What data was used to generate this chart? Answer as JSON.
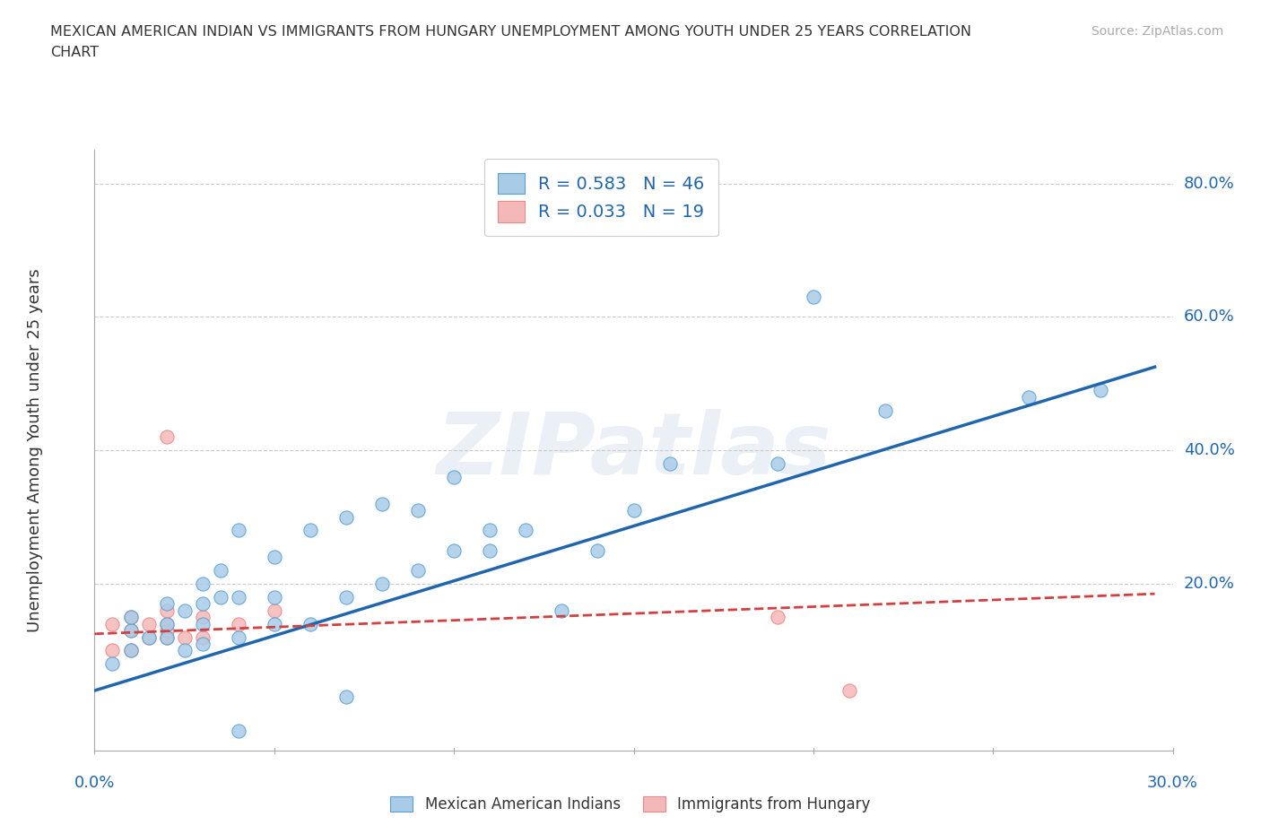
{
  "title_line1": "MEXICAN AMERICAN INDIAN VS IMMIGRANTS FROM HUNGARY UNEMPLOYMENT AMONG YOUTH UNDER 25 YEARS CORRELATION",
  "title_line2": "CHART",
  "source": "Source: ZipAtlas.com",
  "ylabel": "Unemployment Among Youth under 25 years",
  "xlim": [
    0.0,
    0.3
  ],
  "ylim": [
    -0.05,
    0.85
  ],
  "ytick_labels": [
    "20.0%",
    "40.0%",
    "60.0%",
    "80.0%"
  ],
  "ytick_values": [
    0.2,
    0.4,
    0.6,
    0.8
  ],
  "legend_blue_label": "R = 0.583   N = 46",
  "legend_pink_label": "R = 0.033   N = 19",
  "blue_color": "#a8cce8",
  "pink_color": "#f5b8b8",
  "blue_edge_color": "#5a9fd4",
  "pink_edge_color": "#e88888",
  "blue_line_color": "#2166ac",
  "pink_line_color": "#d44040",
  "grid_color": "#cccccc",
  "watermark": "ZIPatlas",
  "blue_scatter_x": [
    0.005,
    0.01,
    0.01,
    0.01,
    0.015,
    0.02,
    0.02,
    0.02,
    0.025,
    0.025,
    0.03,
    0.03,
    0.03,
    0.03,
    0.035,
    0.035,
    0.04,
    0.04,
    0.04,
    0.04,
    0.05,
    0.05,
    0.05,
    0.06,
    0.06,
    0.07,
    0.07,
    0.07,
    0.08,
    0.08,
    0.09,
    0.09,
    0.1,
    0.1,
    0.11,
    0.11,
    0.12,
    0.13,
    0.14,
    0.15,
    0.16,
    0.19,
    0.2,
    0.22,
    0.26,
    0.28
  ],
  "blue_scatter_y": [
    0.08,
    0.1,
    0.13,
    0.15,
    0.12,
    0.12,
    0.14,
    0.17,
    0.1,
    0.16,
    0.11,
    0.14,
    0.17,
    0.2,
    0.18,
    0.22,
    -0.02,
    0.12,
    0.18,
    0.28,
    0.14,
    0.18,
    0.24,
    0.14,
    0.28,
    0.03,
    0.18,
    0.3,
    0.2,
    0.32,
    0.22,
    0.31,
    0.25,
    0.36,
    0.25,
    0.28,
    0.28,
    0.16,
    0.25,
    0.31,
    0.38,
    0.38,
    0.63,
    0.46,
    0.48,
    0.49
  ],
  "pink_scatter_x": [
    0.005,
    0.005,
    0.01,
    0.01,
    0.01,
    0.015,
    0.015,
    0.02,
    0.02,
    0.02,
    0.02,
    0.02,
    0.025,
    0.03,
    0.03,
    0.04,
    0.05,
    0.19,
    0.21
  ],
  "pink_scatter_y": [
    0.1,
    0.14,
    0.1,
    0.13,
    0.15,
    0.12,
    0.14,
    0.12,
    0.13,
    0.14,
    0.16,
    0.42,
    0.12,
    0.12,
    0.15,
    0.14,
    0.16,
    0.15,
    0.04
  ],
  "blue_fit_x": [
    0.0,
    0.295
  ],
  "blue_fit_y": [
    0.04,
    0.525
  ],
  "pink_fit_x": [
    0.0,
    0.295
  ],
  "pink_fit_y": [
    0.125,
    0.185
  ]
}
